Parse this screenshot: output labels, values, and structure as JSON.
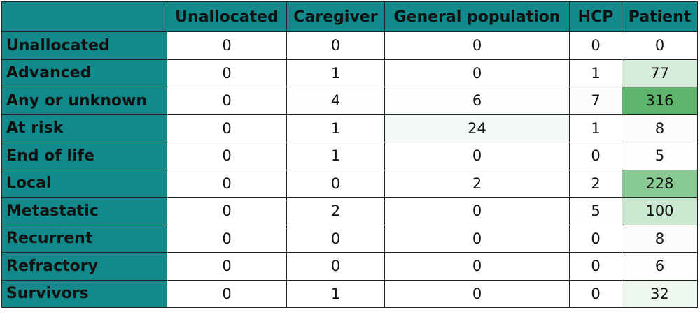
{
  "table": {
    "columns": [
      "Unallocated",
      "Caregiver",
      "General population",
      "HCP",
      "Patient"
    ],
    "heat_color": "#5cb56b",
    "rows": [
      {
        "label": "Unallocated",
        "values": [
          0,
          0,
          0,
          0,
          0
        ]
      },
      {
        "label": "Advanced",
        "values": [
          0,
          1,
          0,
          1,
          77
        ]
      },
      {
        "label": "Any or unknown",
        "values": [
          0,
          4,
          6,
          7,
          316
        ]
      },
      {
        "label": "At risk",
        "values": [
          0,
          1,
          24,
          1,
          8
        ]
      },
      {
        "label": "End of life",
        "values": [
          0,
          1,
          0,
          0,
          5
        ]
      },
      {
        "label": "Local",
        "values": [
          0,
          0,
          2,
          2,
          228
        ]
      },
      {
        "label": "Metastatic",
        "values": [
          0,
          2,
          0,
          5,
          100
        ]
      },
      {
        "label": "Recurrent",
        "values": [
          0,
          0,
          0,
          0,
          8
        ]
      },
      {
        "label": "Refractory",
        "values": [
          0,
          0,
          0,
          0,
          6
        ]
      },
      {
        "label": "Survivors",
        "values": [
          0,
          1,
          0,
          0,
          32
        ]
      }
    ]
  }
}
